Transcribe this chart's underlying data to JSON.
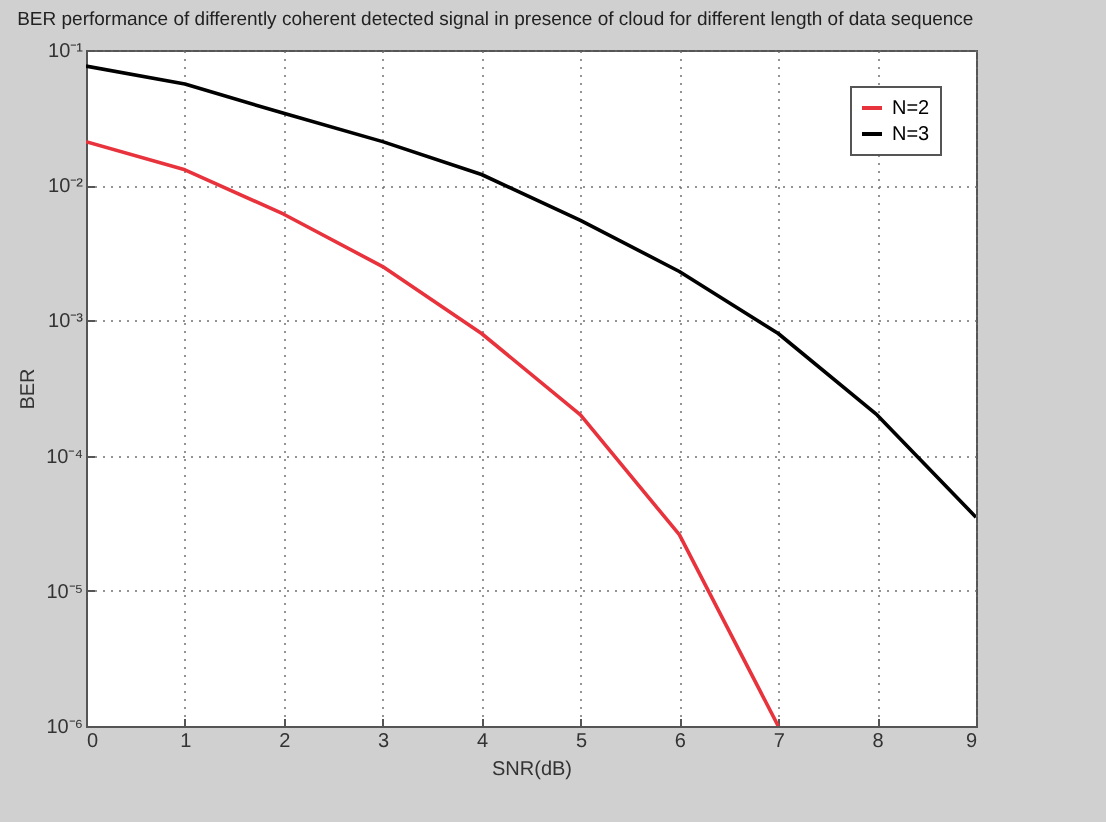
{
  "chart_data": {
    "type": "line",
    "title": "BER performance of differently coherent detected signal in presence of cloud for different length of data sequence",
    "xlabel": "SNR(dB)",
    "ylabel": "BER",
    "x": [
      0,
      1,
      2,
      3,
      4,
      5,
      6,
      7,
      8,
      9
    ],
    "series": [
      {
        "name": "N=2",
        "color": "#e8323c",
        "values": [
          0.021,
          0.013,
          0.0061,
          0.0025,
          0.0008,
          0.0002,
          2.6e-05,
          1e-06,
          null,
          null
        ]
      },
      {
        "name": "N=3",
        "color": "#000000",
        "values": [
          0.076,
          0.056,
          0.034,
          0.021,
          0.012,
          0.0055,
          0.0023,
          0.0008,
          0.0002,
          3.5e-05
        ]
      }
    ],
    "log": "y",
    "xlim": [
      0,
      9
    ],
    "xticks": [
      0,
      1,
      2,
      3,
      4,
      5,
      6,
      7,
      8,
      9
    ],
    "ylim": [
      1e-06,
      0.1
    ],
    "yticks": [
      {
        "value": 1e-06,
        "label": "10⁻⁶"
      },
      {
        "value": 1e-05,
        "label": "10⁻⁵"
      },
      {
        "value": 0.0001,
        "label": "10⁻⁴"
      },
      {
        "value": 0.001,
        "label": "10⁻³"
      },
      {
        "value": 0.01,
        "label": "10⁻²"
      },
      {
        "value": 0.1,
        "label": "10⁻¹"
      }
    ],
    "grid": true,
    "legend": "top right",
    "line_style": "solid"
  }
}
